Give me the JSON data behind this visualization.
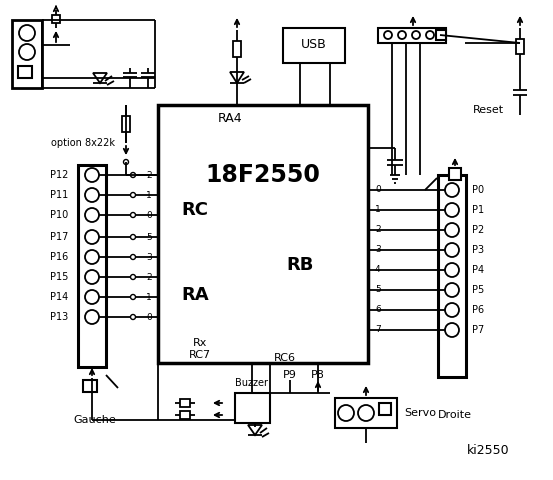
{
  "bg_color": "#ffffff",
  "chip_label": "18F2550",
  "chip_RA4": "RA4",
  "chip_RC": "RC",
  "chip_RA": "RA",
  "chip_RB": "RB",
  "chip_RC7": "RC7",
  "chip_RC6": "RC6",
  "chip_Rx": "Rx",
  "left_pins": [
    "P12",
    "P11",
    "P10",
    "P17",
    "P16",
    "P15",
    "P14",
    "P13"
  ],
  "left_nums": [
    "2",
    "1",
    "0",
    "5",
    "3",
    "2",
    "1",
    "0"
  ],
  "right_pins": [
    "P0",
    "P1",
    "P2",
    "P3",
    "P4",
    "P5",
    "P6",
    "P7"
  ],
  "right_nums": [
    "0",
    "1",
    "2",
    "3",
    "4",
    "5",
    "6",
    "7"
  ],
  "label_gauche": "Gauche",
  "label_droite": "Droite",
  "label_buzzer": "Buzzer",
  "label_servo": "Servo",
  "label_USB": "USB",
  "label_reset": "Reset",
  "label_option": "option 8x22k",
  "label_P9": "P9",
  "label_P8": "P8",
  "label_ki2550": "ki2550"
}
